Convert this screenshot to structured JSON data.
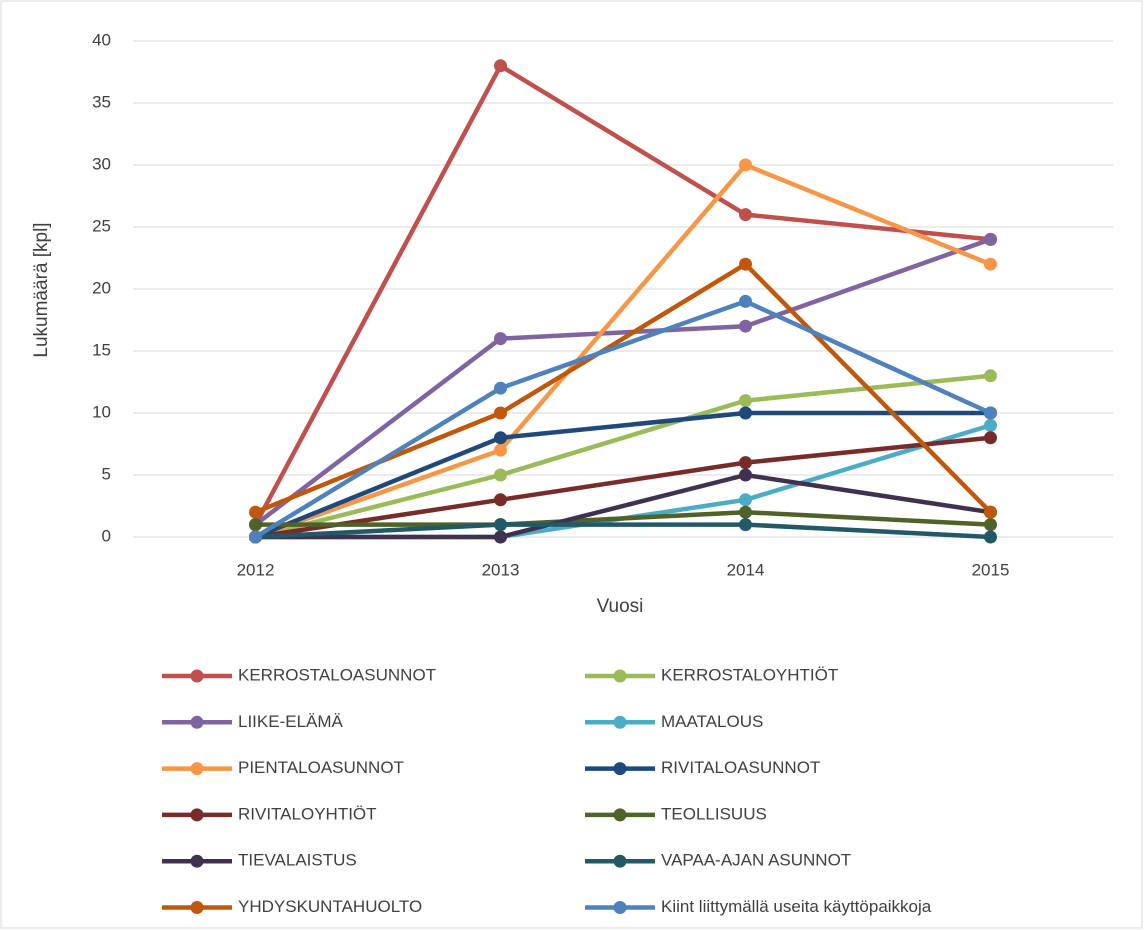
{
  "chart_data": {
    "type": "line",
    "x_label": "Vuosi",
    "y_label": "Lukumäärä [kpl]",
    "categories": [
      "2012",
      "2013",
      "2014",
      "2015"
    ],
    "ylim": [
      0,
      40
    ],
    "yticks": [
      0,
      5,
      10,
      15,
      20,
      25,
      30,
      35,
      40
    ],
    "grid": true,
    "legend": "bottom",
    "series": [
      {
        "name": "KERROSTALOASUNNOT",
        "color": "#c0504d",
        "values": [
          1,
          38,
          26,
          24
        ]
      },
      {
        "name": "KERROSTALOYHTIÖT",
        "color": "#9bbb59",
        "values": [
          0,
          5,
          11,
          13
        ]
      },
      {
        "name": "LIIKE-ELÄMÄ",
        "color": "#8064a2",
        "values": [
          1,
          16,
          17,
          24
        ]
      },
      {
        "name": "MAATALOUS",
        "color": "#4bacc6",
        "values": [
          0,
          0,
          3,
          9
        ]
      },
      {
        "name": "PIENTALOASUNNOT",
        "color": "#f79646",
        "values": [
          0,
          7,
          30,
          22
        ]
      },
      {
        "name": "RIVITALOASUNNOT",
        "color": "#1f497d",
        "values": [
          0,
          8,
          10,
          10
        ]
      },
      {
        "name": "RIVITALOYHTIÖT",
        "color": "#772c2a",
        "values": [
          0,
          3,
          6,
          8
        ]
      },
      {
        "name": "TEOLLISUUS",
        "color": "#4f6228",
        "values": [
          1,
          1,
          2,
          1
        ]
      },
      {
        "name": "TIEVALAISTUS",
        "color": "#403151",
        "values": [
          0,
          0,
          5,
          2
        ]
      },
      {
        "name": "VAPAA-AJAN ASUNNOT",
        "color": "#215968",
        "values": [
          0,
          1,
          1,
          0
        ]
      },
      {
        "name": "YHDYSKUNTAHUOLTO",
        "color": "#c0580c",
        "values": [
          2,
          10,
          22,
          2
        ]
      },
      {
        "name": "Kiint liittymällä useita käyttöpaikkoja",
        "color": "#4f81bd",
        "values": [
          0,
          12,
          19,
          10
        ]
      }
    ]
  }
}
